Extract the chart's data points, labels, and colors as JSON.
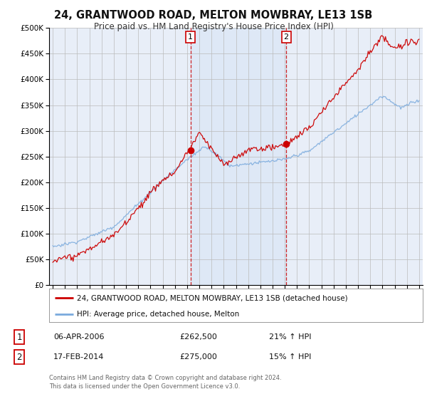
{
  "title": "24, GRANTWOOD ROAD, MELTON MOWBRAY, LE13 1SB",
  "subtitle": "Price paid vs. HM Land Registry's House Price Index (HPI)",
  "hpi_label": "HPI: Average price, detached house, Melton",
  "property_label": "24, GRANTWOOD ROAD, MELTON MOWBRAY, LE13 1SB (detached house)",
  "sale1_date": "06-APR-2006",
  "sale1_price": 262500,
  "sale1_pct": "21%",
  "sale2_date": "17-FEB-2014",
  "sale2_price": 275000,
  "sale2_pct": "15%",
  "footer": "Contains HM Land Registry data © Crown copyright and database right 2024.\nThis data is licensed under the Open Government Licence v3.0.",
  "property_color": "#cc0000",
  "hpi_color": "#7aaadd",
  "sale_vline_color": "#cc0000",
  "background_color": "#ffffff",
  "plot_bg_color": "#e8eef8",
  "grid_color": "#cccccc",
  "ylim_max": 500000,
  "sale1_x": 2006.27,
  "sale2_x": 2014.12
}
